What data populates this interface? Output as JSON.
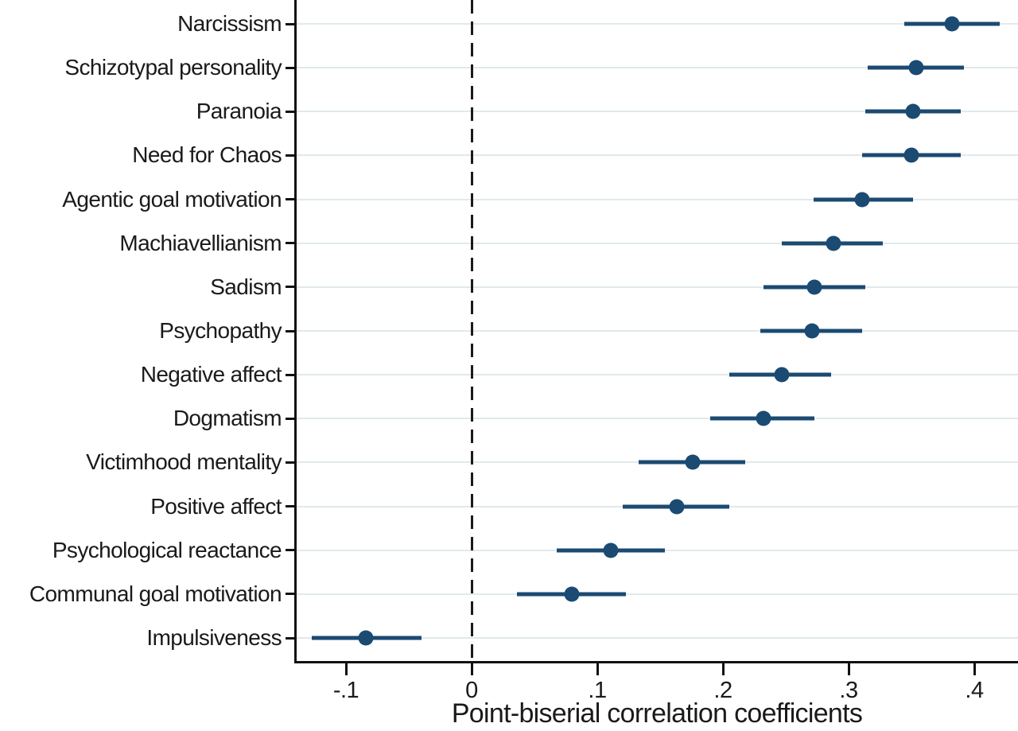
{
  "chart_data": {
    "type": "dot-whisker",
    "orientation": "horizontal",
    "title": "",
    "xlabel": "Point-biserial correlation coefficients",
    "xlim": [
      -0.14,
      0.435
    ],
    "grid": "horizontal-category-gridlines",
    "zero_reference_line": {
      "x": 0,
      "style": "dashed",
      "color": "#1a1a1a"
    },
    "x_ticks": [
      {
        "value": -0.1,
        "label": "-.1"
      },
      {
        "value": 0,
        "label": "0"
      },
      {
        "value": 0.1,
        "label": ".1"
      },
      {
        "value": 0.2,
        "label": ".2"
      },
      {
        "value": 0.3,
        "label": ".3"
      },
      {
        "value": 0.4,
        "label": ".4"
      }
    ],
    "series": [
      {
        "name": "Narcissism",
        "value": 0.382,
        "ci_low": 0.344,
        "ci_high": 0.42
      },
      {
        "name": "Schizotypal personality",
        "value": 0.354,
        "ci_low": 0.315,
        "ci_high": 0.392
      },
      {
        "name": "Paranoia",
        "value": 0.351,
        "ci_low": 0.313,
        "ci_high": 0.389
      },
      {
        "name": "Need for Chaos",
        "value": 0.35,
        "ci_low": 0.311,
        "ci_high": 0.389
      },
      {
        "name": "Agentic goal motivation",
        "value": 0.311,
        "ci_low": 0.272,
        "ci_high": 0.351
      },
      {
        "name": "Machiavellianism",
        "value": 0.288,
        "ci_low": 0.247,
        "ci_high": 0.327
      },
      {
        "name": "Sadism",
        "value": 0.273,
        "ci_low": 0.232,
        "ci_high": 0.313
      },
      {
        "name": "Psychopathy",
        "value": 0.271,
        "ci_low": 0.23,
        "ci_high": 0.311
      },
      {
        "name": "Negative affect",
        "value": 0.247,
        "ci_low": 0.205,
        "ci_high": 0.286
      },
      {
        "name": "Dogmatism",
        "value": 0.232,
        "ci_low": 0.19,
        "ci_high": 0.273
      },
      {
        "name": "Victimhood mentality",
        "value": 0.176,
        "ci_low": 0.133,
        "ci_high": 0.218
      },
      {
        "name": "Positive affect",
        "value": 0.163,
        "ci_low": 0.12,
        "ci_high": 0.205
      },
      {
        "name": "Psychological reactance",
        "value": 0.111,
        "ci_low": 0.068,
        "ci_high": 0.154
      },
      {
        "name": "Communal goal motivation",
        "value": 0.08,
        "ci_low": 0.036,
        "ci_high": 0.123
      },
      {
        "name": "Impulsiveness",
        "value": -0.084,
        "ci_low": -0.127,
        "ci_high": -0.04
      }
    ],
    "colors": {
      "marker": "#1b4a72",
      "ci_line": "#1b4a72",
      "gridline": "#e1e9ec",
      "axis": "#111111",
      "text": "#1a1a1a",
      "background": "#ffffff"
    }
  }
}
